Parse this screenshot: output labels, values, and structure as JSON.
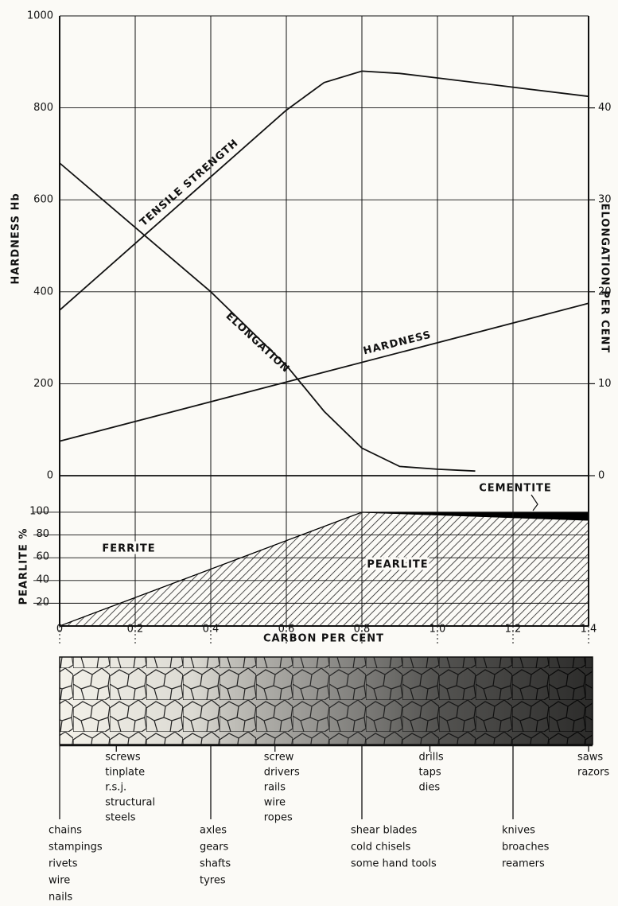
{
  "chart_data": [
    {
      "type": "line",
      "ylabel": "HARDNESS Hb",
      "y2label": "ELONGATION PER CENT",
      "xlim": [
        0,
        1.4
      ],
      "ylim": [
        0,
        1000
      ],
      "yticks": [
        0,
        200,
        400,
        600,
        800,
        1000
      ],
      "y2lim": [
        0,
        50
      ],
      "y2ticks": [
        0,
        10,
        20,
        30,
        40
      ],
      "grid": true,
      "series": [
        {
          "name": "TENSILE STRENGTH",
          "color": "#111111",
          "x": [
            0,
            0.2,
            0.4,
            0.6,
            0.7,
            0.8,
            0.9,
            1.0,
            1.2,
            1.4
          ],
          "values": [
            360,
            505,
            650,
            795,
            855,
            880,
            875,
            865,
            845,
            825
          ]
        },
        {
          "name": "ELONGATION",
          "color": "#111111",
          "axis": "y2",
          "x": [
            0,
            0.2,
            0.4,
            0.6,
            0.7,
            0.8,
            0.9,
            1.0,
            1.1
          ],
          "values": [
            34,
            27,
            20,
            12,
            7,
            3,
            1,
            0.7,
            0.5
          ]
        },
        {
          "name": "HARDNESS",
          "color": "#111111",
          "x": [
            0,
            1.4
          ],
          "values": [
            75,
            375
          ]
        }
      ]
    },
    {
      "type": "area",
      "ylabel": "PEARLITE %",
      "xlabel": "CARBON PER CENT",
      "xlim": [
        0,
        1.4
      ],
      "ylim": [
        0,
        130
      ],
      "xticks": [
        0,
        0.2,
        0.4,
        0.6,
        0.8,
        {
          "value": 1,
          "label": "1.0"
        },
        1.2,
        1.4
      ],
      "yticks": [
        20,
        40,
        60,
        80,
        100
      ],
      "stacked": true,
      "grid": true,
      "annotations": [
        "FERRITE"
      ],
      "series": [
        {
          "name": "PEARLITE",
          "color": "#222222",
          "x": [
            0,
            0.8,
            1.4
          ],
          "values": [
            0,
            100,
            93
          ]
        },
        {
          "name": "CEMENTITE",
          "color": "#000000",
          "x": [
            0,
            0.8,
            1.4
          ],
          "values": [
            0,
            0,
            7
          ]
        }
      ]
    }
  ],
  "uses": [
    {
      "carbon": 0,
      "items": [
        "chains",
        "stampings",
        "rivets",
        "wire",
        "nails"
      ]
    },
    {
      "carbon": 0.15,
      "items": [
        "screws",
        "tinplate",
        "r.s.j.",
        "structural",
        "steels"
      ]
    },
    {
      "carbon": 0.4,
      "items": [
        "axles",
        "gears",
        "shafts",
        "tyres"
      ]
    },
    {
      "carbon": 0.57,
      "items": [
        "screw",
        "drivers",
        "rails",
        "wire",
        "ropes"
      ]
    },
    {
      "carbon": 0.8,
      "items": [
        "shear blades",
        "cold chisels",
        "some hand tools"
      ]
    },
    {
      "carbon": 0.98,
      "items": [
        "drills",
        "taps",
        "dies"
      ]
    },
    {
      "carbon": 1.2,
      "items": [
        "knives",
        "broaches",
        "reamers"
      ]
    },
    {
      "carbon": 1.4,
      "items": [
        "saws",
        "razors"
      ]
    }
  ]
}
